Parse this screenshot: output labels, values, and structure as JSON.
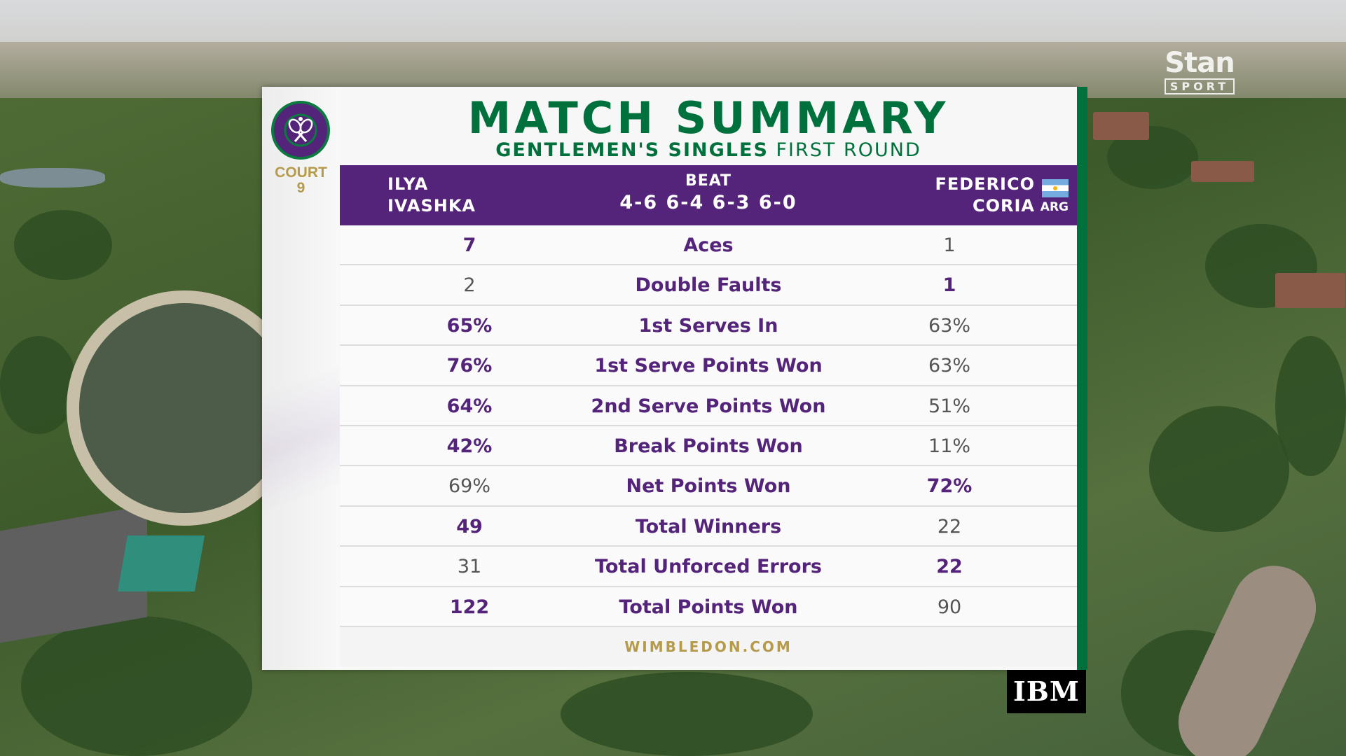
{
  "broadcaster": {
    "logo_top": "Stan",
    "logo_bottom": "SPORT"
  },
  "emblem": {
    "text": "THE CHAMPIONSHIPS WIMBLEDON"
  },
  "court": {
    "label": "COURT",
    "number": "9"
  },
  "title": "MATCH SUMMARY",
  "subtitle": {
    "event": "GENTLEMEN'S SINGLES",
    "round": "FIRST ROUND"
  },
  "header": {
    "player1": {
      "first": "ILYA",
      "last": "IVASHKA"
    },
    "result_word": "BEAT",
    "score": "4-6 6-4 6-3 6-0",
    "player2": {
      "first": "FEDERICO",
      "last": "CORIA",
      "country": "ARG"
    }
  },
  "stats": [
    {
      "label": "Aces",
      "p1": "7",
      "p2": "1",
      "leader": "p1"
    },
    {
      "label": "Double Faults",
      "p1": "2",
      "p2": "1",
      "leader": "p2"
    },
    {
      "label": "1st Serves In",
      "p1": "65%",
      "p2": "63%",
      "leader": "p1"
    },
    {
      "label": "1st Serve Points Won",
      "p1": "76%",
      "p2": "63%",
      "leader": "p1"
    },
    {
      "label": "2nd Serve Points Won",
      "p1": "64%",
      "p2": "51%",
      "leader": "p1"
    },
    {
      "label": "Break Points Won",
      "p1": "42%",
      "p2": "11%",
      "leader": "p1"
    },
    {
      "label": "Net Points Won",
      "p1": "69%",
      "p2": "72%",
      "leader": "p2"
    },
    {
      "label": "Total Winners",
      "p1": "49",
      "p2": "22",
      "leader": "p1"
    },
    {
      "label": "Total Unforced Errors",
      "p1": "31",
      "p2": "22",
      "leader": "p2"
    },
    {
      "label": "Total Points Won",
      "p1": "122",
      "p2": "90",
      "leader": "p1"
    }
  ],
  "footer": "WIMBLEDON.COM",
  "sponsor": "IBM",
  "colors": {
    "wimbledon_purple": "#54247a",
    "wimbledon_green": "#00703c",
    "gold": "#b59a4a"
  }
}
